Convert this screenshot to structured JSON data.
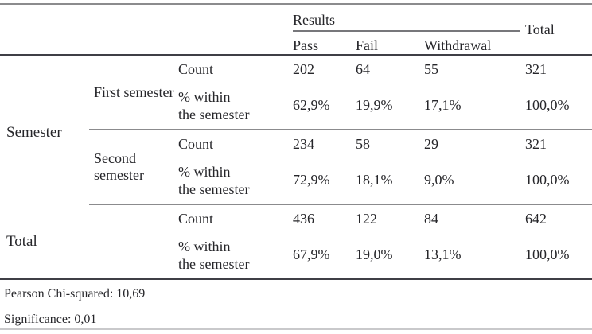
{
  "table": {
    "header": {
      "results": "Results",
      "total": "Total",
      "pass": "Pass",
      "fail": "Fail",
      "withdrawal": "Withdrawal"
    },
    "semester_group_label": "Semester",
    "count_label": "Count",
    "pct_label_line1": "% within",
    "pct_label_line2": "the semester",
    "groups": [
      {
        "name": "First semester",
        "count": {
          "pass": "202",
          "fail": "64",
          "withdrawal": "55",
          "total": "321"
        },
        "pct": {
          "pass": "62,9%",
          "fail": "19,9%",
          "withdrawal": "17,1%",
          "total": "100,0%"
        }
      },
      {
        "name": "Second semester",
        "count": {
          "pass": "234",
          "fail": "58",
          "withdrawal": "29",
          "total": "321"
        },
        "pct": {
          "pass": "72,9%",
          "fail": "18,1%",
          "withdrawal": "9,0%",
          "total": "100,0%"
        }
      },
      {
        "name": "Total",
        "count": {
          "pass": "436",
          "fail": "122",
          "withdrawal": "84",
          "total": "642"
        },
        "pct": {
          "pass": "67,9%",
          "fail": "19,0%",
          "withdrawal": "13,1%",
          "total": "100,0%"
        }
      }
    ]
  },
  "notes": {
    "chi_squared": "Pearson Chi-squared: 10,69",
    "significance": "Significance: 0,01"
  },
  "colors": {
    "text": "#26262a",
    "dark_rule": "#3f3f46",
    "gray_rule": "#8b8b8d",
    "light_rule": "#c9c9cb"
  }
}
